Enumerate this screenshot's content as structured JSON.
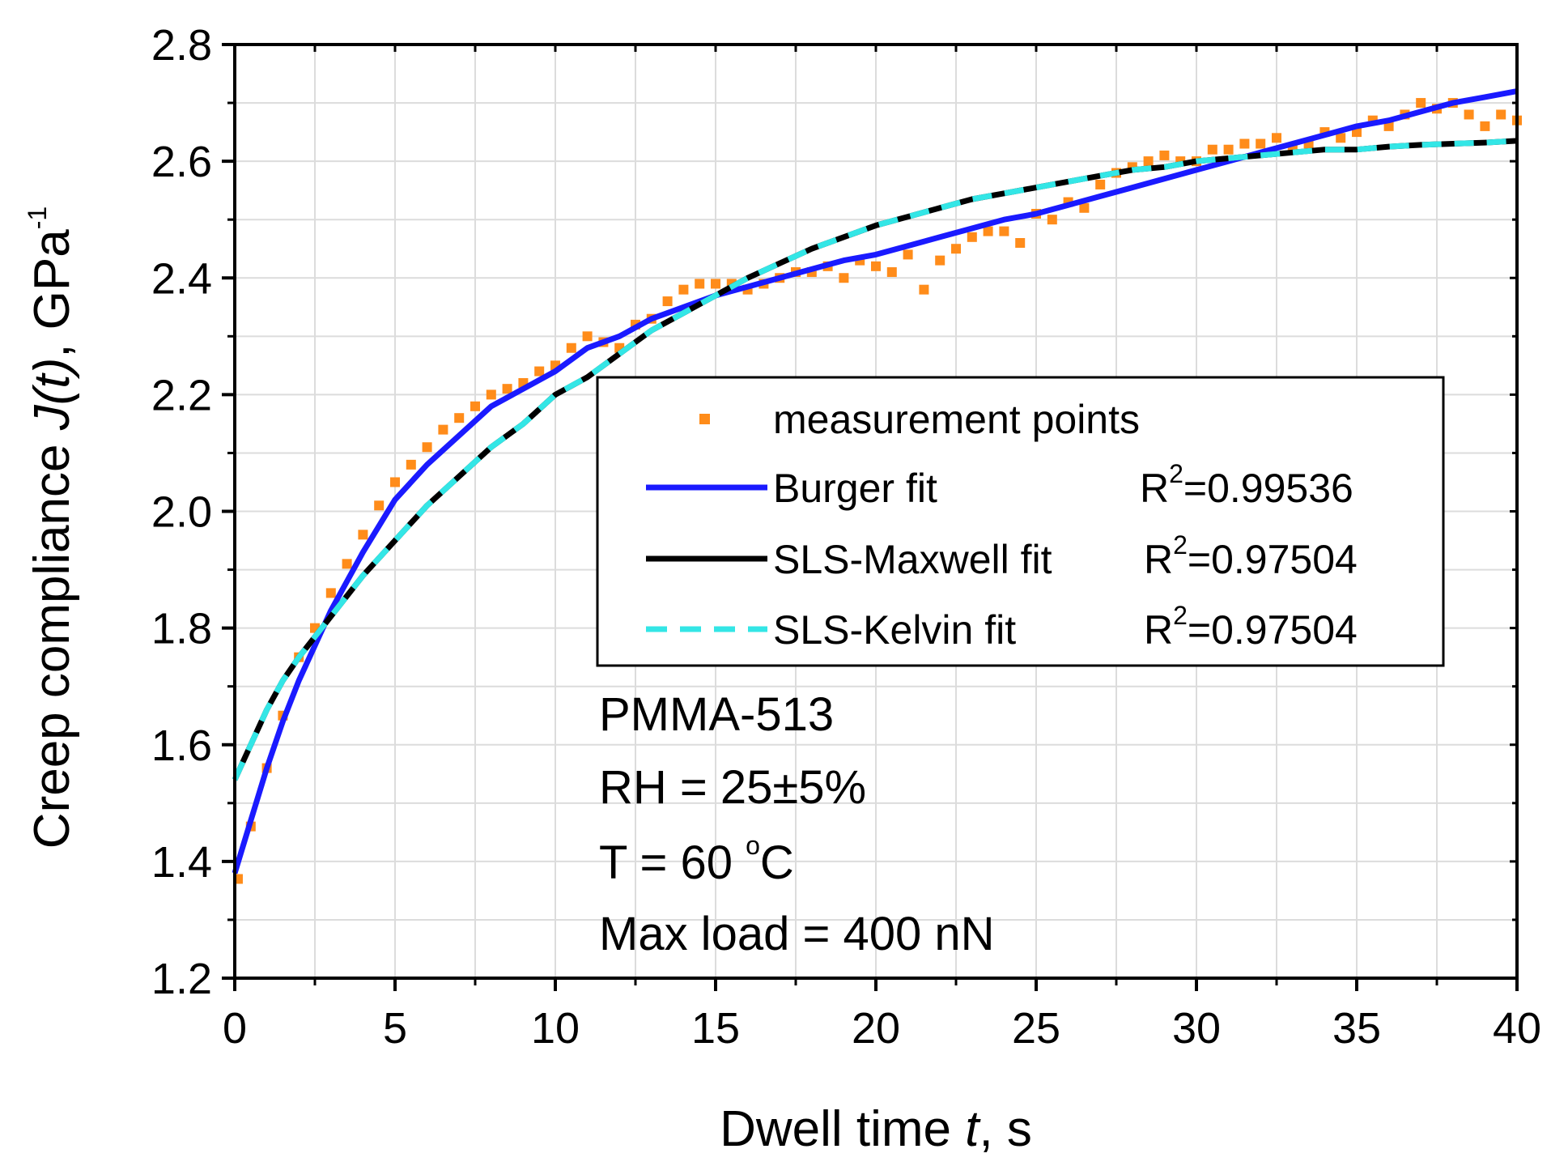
{
  "chart_data": {
    "type": "scatter",
    "xlabel_text": "Dwell time ",
    "xlabel_var": "t",
    "xlabel_unit": ", s",
    "ylabel_text": "Creep compliance ",
    "ylabel_var": "J(t)",
    "ylabel_unit": ", GPa",
    "ylabel_exp": "-1",
    "xlim": [
      0,
      40
    ],
    "ylim": [
      1.2,
      2.8
    ],
    "x_ticks": [
      "0",
      "5",
      "10",
      "15",
      "20",
      "25",
      "30",
      "35",
      "40"
    ],
    "y_ticks": [
      "1.2",
      "1.4",
      "1.6",
      "1.8",
      "2.0",
      "2.2",
      "2.4",
      "2.6",
      "2.8"
    ],
    "grid": true,
    "legend_position": "center-right",
    "series": [
      {
        "name": "measurement points",
        "kind": "scatter",
        "color": "#ff8c1a",
        "x": [
          0.1,
          0.5,
          1.0,
          1.5,
          2.0,
          2.5,
          3.0,
          3.5,
          4.0,
          4.5,
          5.0,
          5.5,
          6.0,
          6.5,
          7.0,
          7.5,
          8.0,
          8.5,
          9.0,
          9.5,
          10.0,
          10.5,
          11.0,
          11.5,
          12.0,
          12.5,
          13.0,
          13.5,
          14.0,
          14.5,
          15.0,
          15.5,
          16.0,
          16.5,
          17.0,
          17.5,
          18.0,
          18.5,
          19.0,
          19.5,
          20.0,
          20.5,
          21.0,
          21.5,
          22.0,
          22.5,
          23.0,
          23.5,
          24.0,
          24.5,
          25.0,
          25.5,
          26.0,
          26.5,
          27.0,
          27.5,
          28.0,
          28.5,
          29.0,
          29.5,
          30.0,
          30.5,
          31.0,
          31.5,
          32.0,
          32.5,
          33.0,
          33.5,
          34.0,
          34.5,
          35.0,
          35.5,
          36.0,
          36.5,
          37.0,
          37.5,
          38.0,
          38.5,
          39.0,
          39.5,
          40.0
        ],
        "y": [
          1.37,
          1.46,
          1.56,
          1.65,
          1.75,
          1.8,
          1.86,
          1.91,
          1.96,
          2.01,
          2.05,
          2.08,
          2.11,
          2.14,
          2.16,
          2.18,
          2.2,
          2.21,
          2.22,
          2.24,
          2.25,
          2.28,
          2.3,
          2.29,
          2.28,
          2.32,
          2.33,
          2.36,
          2.38,
          2.39,
          2.39,
          2.39,
          2.38,
          2.39,
          2.4,
          2.41,
          2.41,
          2.42,
          2.4,
          2.43,
          2.42,
          2.41,
          2.44,
          2.38,
          2.43,
          2.45,
          2.47,
          2.48,
          2.48,
          2.46,
          2.51,
          2.5,
          2.53,
          2.52,
          2.56,
          2.58,
          2.59,
          2.6,
          2.61,
          2.6,
          2.6,
          2.62,
          2.62,
          2.63,
          2.63,
          2.64,
          2.62,
          2.63,
          2.65,
          2.64,
          2.65,
          2.67,
          2.66,
          2.68,
          2.7,
          2.69,
          2.7,
          2.68,
          2.66,
          2.68,
          2.67
        ]
      },
      {
        "name": "Burger fit",
        "r2": "0.99536",
        "kind": "line",
        "color": "#1a1aff",
        "x": [
          0,
          0.5,
          1,
          1.5,
          2,
          3,
          4,
          5,
          6,
          7,
          8,
          9,
          10,
          11,
          12,
          13,
          14,
          15,
          16,
          17,
          18,
          19,
          20,
          21,
          22,
          23,
          24,
          25,
          26,
          27,
          28,
          29,
          30,
          31,
          32,
          33,
          34,
          35,
          36,
          37,
          38,
          39,
          40
        ],
        "y": [
          1.38,
          1.47,
          1.56,
          1.64,
          1.71,
          1.83,
          1.93,
          2.02,
          2.08,
          2.13,
          2.18,
          2.21,
          2.24,
          2.28,
          2.3,
          2.33,
          2.35,
          2.37,
          2.385,
          2.4,
          2.415,
          2.43,
          2.44,
          2.455,
          2.47,
          2.485,
          2.5,
          2.51,
          2.525,
          2.54,
          2.555,
          2.57,
          2.585,
          2.6,
          2.615,
          2.63,
          2.645,
          2.66,
          2.67,
          2.685,
          2.7,
          2.71,
          2.72
        ]
      },
      {
        "name": "SLS-Maxwell fit",
        "r2": "0.97504",
        "kind": "line",
        "color": "#000000",
        "x": [
          0,
          0.5,
          1,
          1.5,
          2,
          3,
          4,
          5,
          6,
          7,
          8,
          9,
          10,
          11,
          12,
          13,
          14,
          15,
          16,
          17,
          18,
          19,
          20,
          21,
          22,
          23,
          24,
          25,
          26,
          27,
          28,
          29,
          30,
          31,
          32,
          33,
          34,
          35,
          36,
          37,
          38,
          39,
          40
        ],
        "y": [
          1.54,
          1.6,
          1.66,
          1.71,
          1.75,
          1.82,
          1.89,
          1.95,
          2.01,
          2.06,
          2.11,
          2.15,
          2.2,
          2.23,
          2.27,
          2.31,
          2.34,
          2.37,
          2.4,
          2.425,
          2.45,
          2.47,
          2.49,
          2.505,
          2.52,
          2.535,
          2.545,
          2.555,
          2.565,
          2.575,
          2.585,
          2.59,
          2.6,
          2.605,
          2.61,
          2.615,
          2.62,
          2.62,
          2.625,
          2.628,
          2.63,
          2.632,
          2.635
        ]
      },
      {
        "name": "SLS-Kelvin fit",
        "r2": "0.97504",
        "kind": "dashed-line",
        "color": "#33e6e6",
        "x": [
          0,
          0.5,
          1,
          1.5,
          2,
          3,
          4,
          5,
          6,
          7,
          8,
          9,
          10,
          11,
          12,
          13,
          14,
          15,
          16,
          17,
          18,
          19,
          20,
          21,
          22,
          23,
          24,
          25,
          26,
          27,
          28,
          29,
          30,
          31,
          32,
          33,
          34,
          35,
          36,
          37,
          38,
          39,
          40
        ],
        "y": [
          1.54,
          1.6,
          1.66,
          1.71,
          1.75,
          1.82,
          1.89,
          1.95,
          2.01,
          2.06,
          2.11,
          2.15,
          2.2,
          2.23,
          2.27,
          2.31,
          2.34,
          2.37,
          2.4,
          2.425,
          2.45,
          2.47,
          2.49,
          2.505,
          2.52,
          2.535,
          2.545,
          2.555,
          2.565,
          2.575,
          2.585,
          2.59,
          2.6,
          2.605,
          2.61,
          2.615,
          2.62,
          2.62,
          2.625,
          2.628,
          2.63,
          2.632,
          2.635
        ]
      }
    ],
    "legend_r2_prefix": "R",
    "legend_r2_exp": "2",
    "annotations": {
      "line1": "PMMA-513",
      "line2": "RH = 25±5%",
      "line3_prefix": "T = 60 ",
      "line3_sup": "o",
      "line3_suffix": "C",
      "line4": "Max load = 400 nN"
    }
  }
}
